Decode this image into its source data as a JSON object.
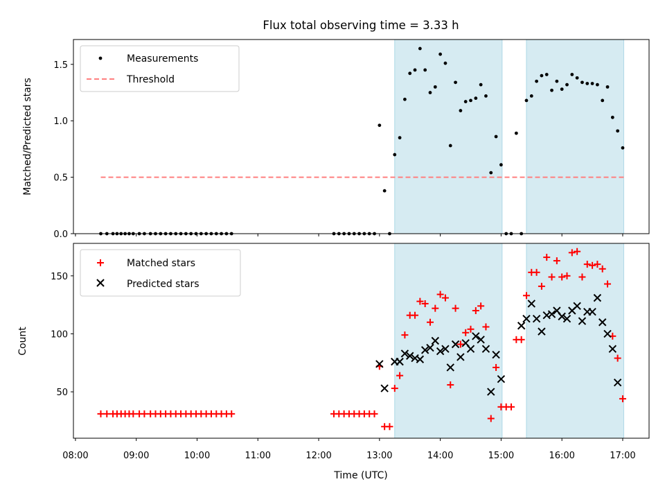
{
  "chart_data": {
    "type": "scatter",
    "title": "Flux total observing time = 3.33 h",
    "xlabel": "Time (UTC)",
    "x_ticks": [
      "08:00",
      "09:00",
      "10:00",
      "11:00",
      "12:00",
      "13:00",
      "14:00",
      "15:00",
      "16:00",
      "17:00"
    ],
    "x_range": [
      "07:58",
      "17:26"
    ],
    "shaded_intervals": [
      [
        "13:15",
        "15:01"
      ],
      [
        "15:25",
        "17:01"
      ]
    ],
    "shade_color": "#add8e6",
    "panels": [
      {
        "ylabel": "Matched/Predicted stars",
        "ylim": [
          0,
          1.72
        ],
        "y_ticks": [
          "0.0",
          "0.5",
          "1.0",
          "1.5"
        ],
        "y_tick_values": [
          0,
          0.5,
          1.0,
          1.5
        ],
        "legend_position": "upper left",
        "legend": [
          {
            "label": "Measurements",
            "marker": "dot",
            "color": "#000000"
          },
          {
            "label": "Threshold",
            "marker": "dash",
            "color": "#ff7f7f"
          }
        ],
        "threshold": {
          "value": 0.5,
          "x_start": "08:25",
          "x_end": "17:01"
        },
        "measurements": {
          "x": [
            "08:25",
            "08:31",
            "08:37",
            "08:41",
            "08:45",
            "08:49",
            "08:53",
            "08:57",
            "09:03",
            "09:08",
            "09:14",
            "09:19",
            "09:24",
            "09:29",
            "09:34",
            "09:39",
            "09:44",
            "09:49",
            "09:54",
            "09:59",
            "10:04",
            "10:09",
            "10:14",
            "10:19",
            "10:24",
            "10:29",
            "10:34",
            "12:15",
            "12:20",
            "12:25",
            "12:30",
            "12:35",
            "12:40",
            "12:45",
            "12:50",
            "12:55",
            "13:00",
            "13:05",
            "13:10",
            "13:15",
            "13:20",
            "13:25",
            "13:30",
            "13:35",
            "13:40",
            "13:45",
            "13:50",
            "13:55",
            "14:00",
            "14:05",
            "14:10",
            "14:15",
            "14:20",
            "14:25",
            "14:30",
            "14:35",
            "14:40",
            "14:45",
            "14:50",
            "14:55",
            "15:00",
            "15:05",
            "15:10",
            "15:15",
            "15:20",
            "15:25",
            "15:30",
            "15:35",
            "15:40",
            "15:45",
            "15:50",
            "15:55",
            "16:00",
            "16:05",
            "16:10",
            "16:15",
            "16:20",
            "16:25",
            "16:30",
            "16:35",
            "16:40",
            "16:45",
            "16:50",
            "16:55",
            "17:00"
          ],
          "y": [
            0,
            0,
            0,
            0,
            0,
            0,
            0,
            0,
            0,
            0,
            0,
            0,
            0,
            0,
            0,
            0,
            0,
            0,
            0,
            0,
            0,
            0,
            0,
            0,
            0,
            0,
            0,
            0,
            0,
            0,
            0,
            0,
            0,
            0,
            0,
            0,
            0.96,
            0.38,
            0,
            0.7,
            0.85,
            1.19,
            1.42,
            1.45,
            1.64,
            1.45,
            1.25,
            1.3,
            1.59,
            1.51,
            0.78,
            1.34,
            1.09,
            1.17,
            1.18,
            1.2,
            1.32,
            1.22,
            0.54,
            0.86,
            0.61,
            0,
            0,
            0.89,
            0,
            1.18,
            1.22,
            1.35,
            1.4,
            1.41,
            1.27,
            1.35,
            1.28,
            1.32,
            1.41,
            1.38,
            1.34,
            1.33,
            1.33,
            1.32,
            1.18,
            1.3,
            1.03,
            0.91,
            0.76
          ]
        }
      },
      {
        "ylabel": "Count",
        "ylim": [
          10,
          178
        ],
        "y_ticks": [
          "50",
          "100",
          "150"
        ],
        "y_tick_values": [
          50,
          100,
          150
        ],
        "legend_position": "upper left",
        "legend": [
          {
            "label": "Matched stars",
            "marker": "plus",
            "color": "#ff0000"
          },
          {
            "label": "Predicted stars",
            "marker": "x",
            "color": "#000000"
          }
        ],
        "matched": {
          "x": [
            "08:25",
            "08:31",
            "08:37",
            "08:41",
            "08:45",
            "08:49",
            "08:53",
            "08:57",
            "09:03",
            "09:08",
            "09:14",
            "09:19",
            "09:24",
            "09:29",
            "09:34",
            "09:39",
            "09:44",
            "09:49",
            "09:54",
            "09:59",
            "10:04",
            "10:09",
            "10:14",
            "10:19",
            "10:24",
            "10:29",
            "10:34",
            "12:15",
            "12:20",
            "12:25",
            "12:30",
            "12:35",
            "12:40",
            "12:45",
            "12:50",
            "12:55",
            "13:00",
            "13:05",
            "13:10",
            "13:15",
            "13:20",
            "13:25",
            "13:30",
            "13:35",
            "13:40",
            "13:45",
            "13:50",
            "13:55",
            "14:00",
            "14:05",
            "14:10",
            "14:15",
            "14:20",
            "14:25",
            "14:30",
            "14:35",
            "14:40",
            "14:45",
            "14:50",
            "14:55",
            "15:00",
            "15:05",
            "15:10",
            "15:15",
            "15:20",
            "15:25",
            "15:30",
            "15:35",
            "15:40",
            "15:45",
            "15:50",
            "15:55",
            "16:00",
            "16:05",
            "16:10",
            "16:15",
            "16:20",
            "16:25",
            "16:30",
            "16:35",
            "16:40",
            "16:45",
            "16:50",
            "16:55",
            "17:00"
          ],
          "y": [
            31,
            31,
            31,
            31,
            31,
            31,
            31,
            31,
            31,
            31,
            31,
            31,
            31,
            31,
            31,
            31,
            31,
            31,
            31,
            31,
            31,
            31,
            31,
            31,
            31,
            31,
            31,
            31,
            31,
            31,
            31,
            31,
            31,
            31,
            31,
            31,
            72,
            20,
            20,
            53,
            64,
            99,
            116,
            116,
            128,
            126,
            110,
            122,
            134,
            131,
            56,
            122,
            91,
            101,
            104,
            120,
            124,
            106,
            27,
            71,
            37,
            37,
            37,
            95,
            95,
            133,
            153,
            153,
            141,
            166,
            149,
            163,
            149,
            150,
            170,
            171,
            149,
            160,
            159,
            160,
            156,
            143,
            98,
            79,
            44
          ]
        },
        "predicted": {
          "x": [
            "13:00",
            "13:05",
            "13:10",
            "13:15",
            "13:20",
            "13:25",
            "13:30",
            "13:35",
            "13:40",
            "13:45",
            "13:50",
            "13:55",
            "14:00",
            "14:05",
            "14:10",
            "14:15",
            "14:20",
            "14:25",
            "14:30",
            "14:35",
            "14:40",
            "14:45",
            "14:50",
            "14:55",
            "15:00",
            "15:20",
            "15:25",
            "15:30",
            "15:35",
            "15:40",
            "15:45",
            "15:50",
            "15:55",
            "16:00",
            "16:05",
            "16:10",
            "16:15",
            "16:20",
            "16:25",
            "16:30",
            "16:35",
            "16:40",
            "16:45",
            "16:50",
            "16:55",
            "17:00"
          ],
          "y": [
            74,
            53,
            null,
            76,
            76,
            83,
            81,
            79,
            78,
            86,
            88,
            94,
            85,
            87,
            71,
            91,
            80,
            92,
            87,
            98,
            95,
            87,
            50,
            82,
            61,
            107,
            113,
            126,
            113,
            102,
            116,
            117,
            120,
            115,
            113,
            120,
            124,
            111,
            119,
            119,
            131,
            110,
            100,
            87,
            58,
            null
          ]
        }
      }
    ]
  }
}
